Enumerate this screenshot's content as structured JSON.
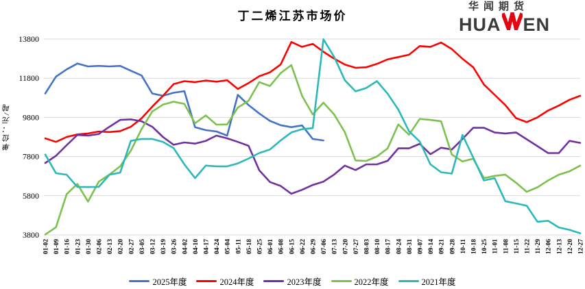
{
  "title": "丁二烯江苏市场价",
  "logo": {
    "cn": "华闻期货",
    "en_left": "HUA",
    "en_right": "EN",
    "w_icon": "red-checkmark-w",
    "accent_color": "#E30613",
    "text_color": "#3B3B3B"
  },
  "chart_data": {
    "type": "line",
    "title": "丁二烯江苏市场价",
    "xlabel": "",
    "ylabel": "单位：元/吨",
    "ylim": [
      3800,
      13800
    ],
    "yticks": [
      3800,
      5800,
      7800,
      9800,
      11800,
      13800
    ],
    "grid": true,
    "legend_position": "bottom",
    "grid_color": "#D9D9D9",
    "categories": [
      "01-02",
      "01-09",
      "01-16",
      "01-23",
      "01-30",
      "02-06",
      "02-13",
      "02-20",
      "02-27",
      "03-05",
      "03-12",
      "03-19",
      "03-26",
      "04-02",
      "04-10",
      "04-17",
      "04-24",
      "05-04",
      "05-11",
      "05-18",
      "05-25",
      "06-01",
      "06-08",
      "06-15",
      "06-22",
      "06-29",
      "07-06",
      "07-13",
      "07-20",
      "07-27",
      "08-03",
      "08-10",
      "08-17",
      "08-24",
      "08-31",
      "09-07",
      "09-14",
      "09-21",
      "09-28",
      "10-11",
      "10-18",
      "10-25",
      "11-01",
      "11-08",
      "11-15",
      "11-22",
      "11-29",
      "12-06",
      "12-13",
      "12-20",
      "12-27"
    ],
    "series": [
      {
        "name": "2025年度",
        "color": "#4472C4",
        "values": [
          11020,
          11880,
          12250,
          12550,
          12400,
          12430,
          12400,
          12430,
          12180,
          11940,
          11020,
          10900,
          11060,
          11140,
          9300,
          9150,
          9080,
          8870,
          10950,
          10430,
          10000,
          9620,
          9400,
          9300,
          9390,
          8700,
          8620,
          null,
          null,
          null,
          null,
          null,
          null,
          null,
          null,
          null,
          null,
          null,
          null,
          null,
          null,
          null,
          null,
          null,
          null,
          null,
          null,
          null,
          null,
          null,
          null
        ]
      },
      {
        "name": "2024年度",
        "color": "#FF0000",
        "values": [
          8730,
          8550,
          8800,
          8930,
          8980,
          9080,
          9050,
          9100,
          9320,
          9750,
          10350,
          10900,
          11500,
          11650,
          11600,
          11680,
          11620,
          11700,
          11250,
          11550,
          11900,
          12100,
          12500,
          13650,
          13400,
          13550,
          13150,
          12800,
          12500,
          12330,
          12360,
          12530,
          12760,
          12880,
          13000,
          13440,
          13400,
          13620,
          13290,
          12790,
          12360,
          11480,
          10950,
          10430,
          9760,
          9560,
          9800,
          10150,
          10400,
          10700,
          10900
        ]
      },
      {
        "name": "2023年度",
        "color": "#7030A0",
        "values": [
          7470,
          7840,
          8380,
          8900,
          8870,
          8950,
          9320,
          9670,
          9700,
          9600,
          9320,
          8800,
          8400,
          8520,
          8460,
          8600,
          8870,
          8730,
          8550,
          8350,
          7100,
          6500,
          6300,
          5900,
          6100,
          6350,
          6520,
          6880,
          7340,
          7110,
          7400,
          7400,
          7580,
          8220,
          8220,
          8450,
          7920,
          8250,
          8160,
          8700,
          9270,
          9270,
          9030,
          8980,
          9030,
          8680,
          8330,
          7980,
          7980,
          8600,
          8500
        ]
      },
      {
        "name": "2022年度",
        "color": "#7CC14D",
        "values": [
          3820,
          4190,
          5880,
          6400,
          5500,
          6520,
          6880,
          7300,
          8100,
          9200,
          10100,
          10450,
          10600,
          10490,
          9500,
          9900,
          9430,
          9440,
          10300,
          10650,
          11600,
          11400,
          12060,
          12470,
          10900,
          9950,
          10550,
          9950,
          9045,
          7600,
          7575,
          7805,
          8215,
          9440,
          8915,
          9720,
          9670,
          9600,
          7900,
          7550,
          7690,
          6700,
          6815,
          6875,
          6465,
          6000,
          6230,
          6580,
          6875,
          7050,
          7340
        ]
      },
      {
        "name": "2021年度",
        "color": "#2BB8B8",
        "values": [
          7900,
          6950,
          6875,
          6250,
          6245,
          6250,
          6875,
          6980,
          8600,
          8700,
          8700,
          8550,
          8230,
          7400,
          6700,
          7340,
          7300,
          7300,
          7450,
          7700,
          7980,
          8160,
          8620,
          9030,
          9200,
          9250,
          13790,
          12890,
          11700,
          11130,
          11300,
          11650,
          11010,
          10200,
          9090,
          8565,
          7400,
          7000,
          6930,
          8900,
          7750,
          6580,
          6700,
          5520,
          5410,
          5290,
          4470,
          4520,
          4180,
          4060,
          3885
        ]
      }
    ]
  }
}
